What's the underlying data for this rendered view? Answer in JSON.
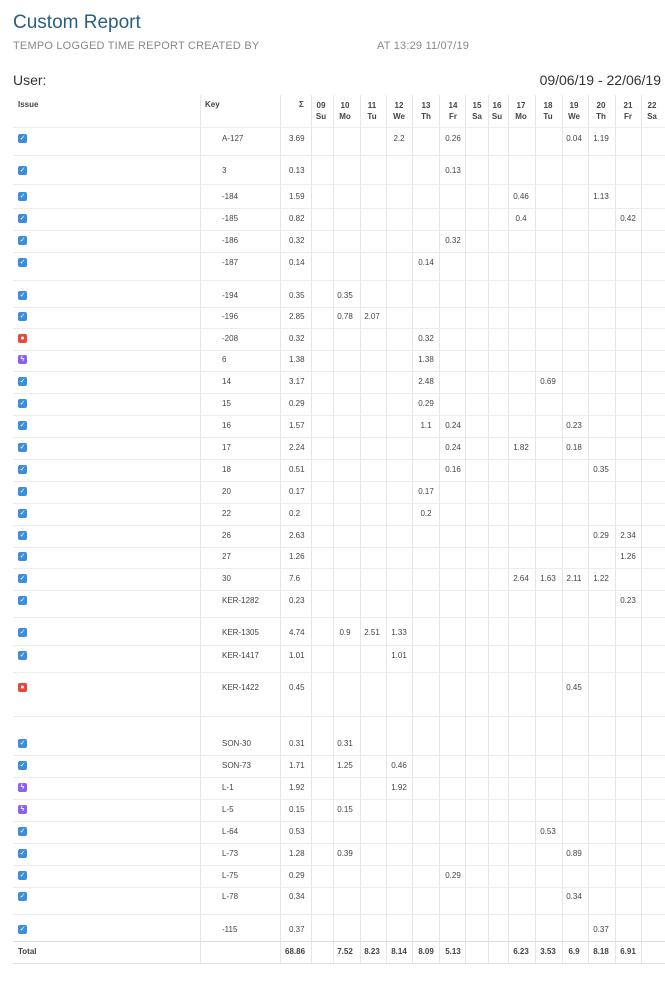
{
  "header": {
    "title": "Custom Report",
    "subtitle": "TEMPO LOGGED TIME REPORT CREATED BY",
    "created_at": "AT 13:29 11/07/19",
    "user_label": "User:",
    "period": "09/06/19 - 22/06/19"
  },
  "table": {
    "columns": {
      "issue": "Issue",
      "key": "Key",
      "total": "Σ",
      "days": [
        {
          "date": "09",
          "day": "Su"
        },
        {
          "date": "10",
          "day": "Mo"
        },
        {
          "date": "11",
          "day": "Tu"
        },
        {
          "date": "12",
          "day": "We"
        },
        {
          "date": "13",
          "day": "Th"
        },
        {
          "date": "14",
          "day": "Fr"
        },
        {
          "date": "15",
          "day": "Sa"
        },
        {
          "date": "16",
          "day": "Su"
        },
        {
          "date": "17",
          "day": "Mo"
        },
        {
          "date": "18",
          "day": "Tu"
        },
        {
          "date": "19",
          "day": "We"
        },
        {
          "date": "20",
          "day": "Th"
        },
        {
          "date": "21",
          "day": "Fr"
        },
        {
          "date": "22",
          "day": "Sa"
        }
      ]
    },
    "rows": [
      {
        "icon": "check",
        "key": "A-127",
        "total": 3.69,
        "cells": {
          "3": 2.2,
          "5": 0.26,
          "10": 0.04,
          "11": 1.19
        }
      },
      {
        "icon": "check",
        "key": "3",
        "total": 0.13,
        "cells": {
          "5": 0.13
        }
      },
      {
        "icon": "check",
        "key": "-184",
        "total": 1.59,
        "cells": {
          "8": 0.46,
          "11": 1.13
        }
      },
      {
        "icon": "check",
        "key": "-185",
        "total": 0.82,
        "cells": {
          "8": 0.4,
          "12": 0.42
        }
      },
      {
        "icon": "check",
        "key": "-186",
        "total": 0.32,
        "cells": {
          "5": 0.32
        }
      },
      {
        "icon": "check",
        "key": "-187",
        "total": 0.14,
        "cells": {
          "4": 0.14
        }
      },
      {
        "icon": "check",
        "key": "-194",
        "total": 0.35,
        "cells": {
          "1": 0.35
        }
      },
      {
        "icon": "check",
        "key": "-196",
        "total": 2.85,
        "cells": {
          "1": 0.78,
          "2": 2.07
        }
      },
      {
        "icon": "bug",
        "key": "-208",
        "total": 0.32,
        "cells": {
          "4": 0.32
        }
      },
      {
        "icon": "story",
        "key": "6",
        "total": 1.38,
        "cells": {
          "4": 1.38
        }
      },
      {
        "icon": "check",
        "key": "14",
        "total": 3.17,
        "cells": {
          "4": 2.48,
          "9": 0.69
        }
      },
      {
        "icon": "check",
        "key": "15",
        "total": 0.29,
        "cells": {
          "4": 0.29
        }
      },
      {
        "icon": "check",
        "key": "16",
        "total": 1.57,
        "cells": {
          "4": 1.1,
          "5": 0.24,
          "10": 0.23
        }
      },
      {
        "icon": "check",
        "key": "17",
        "total": 2.24,
        "cells": {
          "5": 0.24,
          "8": 1.82,
          "10": 0.18
        }
      },
      {
        "icon": "check",
        "key": "18",
        "total": 0.51,
        "cells": {
          "5": 0.16,
          "11": 0.35
        }
      },
      {
        "icon": "check",
        "key": "20",
        "total": 0.17,
        "cells": {
          "4": 0.17
        }
      },
      {
        "icon": "check",
        "key": "22",
        "total": 0.2,
        "cells": {
          "4": 0.2
        }
      },
      {
        "icon": "check",
        "key": "26",
        "total": 2.63,
        "cells": {
          "11": 0.29,
          "12": 2.34
        }
      },
      {
        "icon": "check",
        "key": "27",
        "total": 1.26,
        "cells": {
          "12": 1.26
        }
      },
      {
        "icon": "check",
        "key": "30",
        "total": 7.6,
        "cells": {
          "8": 2.64,
          "9": 1.63,
          "10": 2.11,
          "11": 1.22
        }
      },
      {
        "icon": "check",
        "key": "KER-1282",
        "total": 0.23,
        "cells": {
          "12": 0.23
        }
      },
      {
        "icon": "check",
        "key": "KER-1305",
        "total": 4.74,
        "cells": {
          "1": 0.9,
          "2": 2.51,
          "3": 1.33
        }
      },
      {
        "icon": "check",
        "key": "KER-1417",
        "total": 1.01,
        "cells": {
          "3": 1.01
        }
      },
      {
        "icon": "bug",
        "key": "KER-1422",
        "total": 0.45,
        "cells": {
          "10": 0.45
        }
      },
      {
        "icon": "check",
        "key": "SON-30",
        "total": 0.31,
        "cells": {
          "1": 0.31
        }
      },
      {
        "icon": "check",
        "key": "SON-73",
        "total": 1.71,
        "cells": {
          "1": 1.25,
          "3": 0.46
        }
      },
      {
        "icon": "story",
        "key": "L-1",
        "total": 1.92,
        "cells": {
          "3": 1.92
        }
      },
      {
        "icon": "story",
        "key": "L-5",
        "total": 0.15,
        "cells": {
          "1": 0.15
        }
      },
      {
        "icon": "check",
        "key": "L-64",
        "total": 0.53,
        "cells": {
          "9": 0.53
        }
      },
      {
        "icon": "check",
        "key": "L-73",
        "total": 1.28,
        "cells": {
          "1": 0.39,
          "10": 0.89
        }
      },
      {
        "icon": "check",
        "key": "L-75",
        "total": 0.29,
        "cells": {
          "5": 0.29
        }
      },
      {
        "icon": "check",
        "key": "L-78",
        "total": 0.34,
        "cells": {
          "10": 0.34
        }
      },
      {
        "icon": "check",
        "key": "-115",
        "total": 0.37,
        "cells": {
          "11": 0.37
        }
      }
    ],
    "total_row": {
      "label": "Total",
      "total": 68.86,
      "cells": {
        "1": 7.52,
        "2": 8.23,
        "3": 8.14,
        "4": 8.09,
        "5": 5.13,
        "8": 6.23,
        "9": 3.53,
        "10": 6.9,
        "11": 8.18,
        "12": 6.91
      }
    }
  }
}
